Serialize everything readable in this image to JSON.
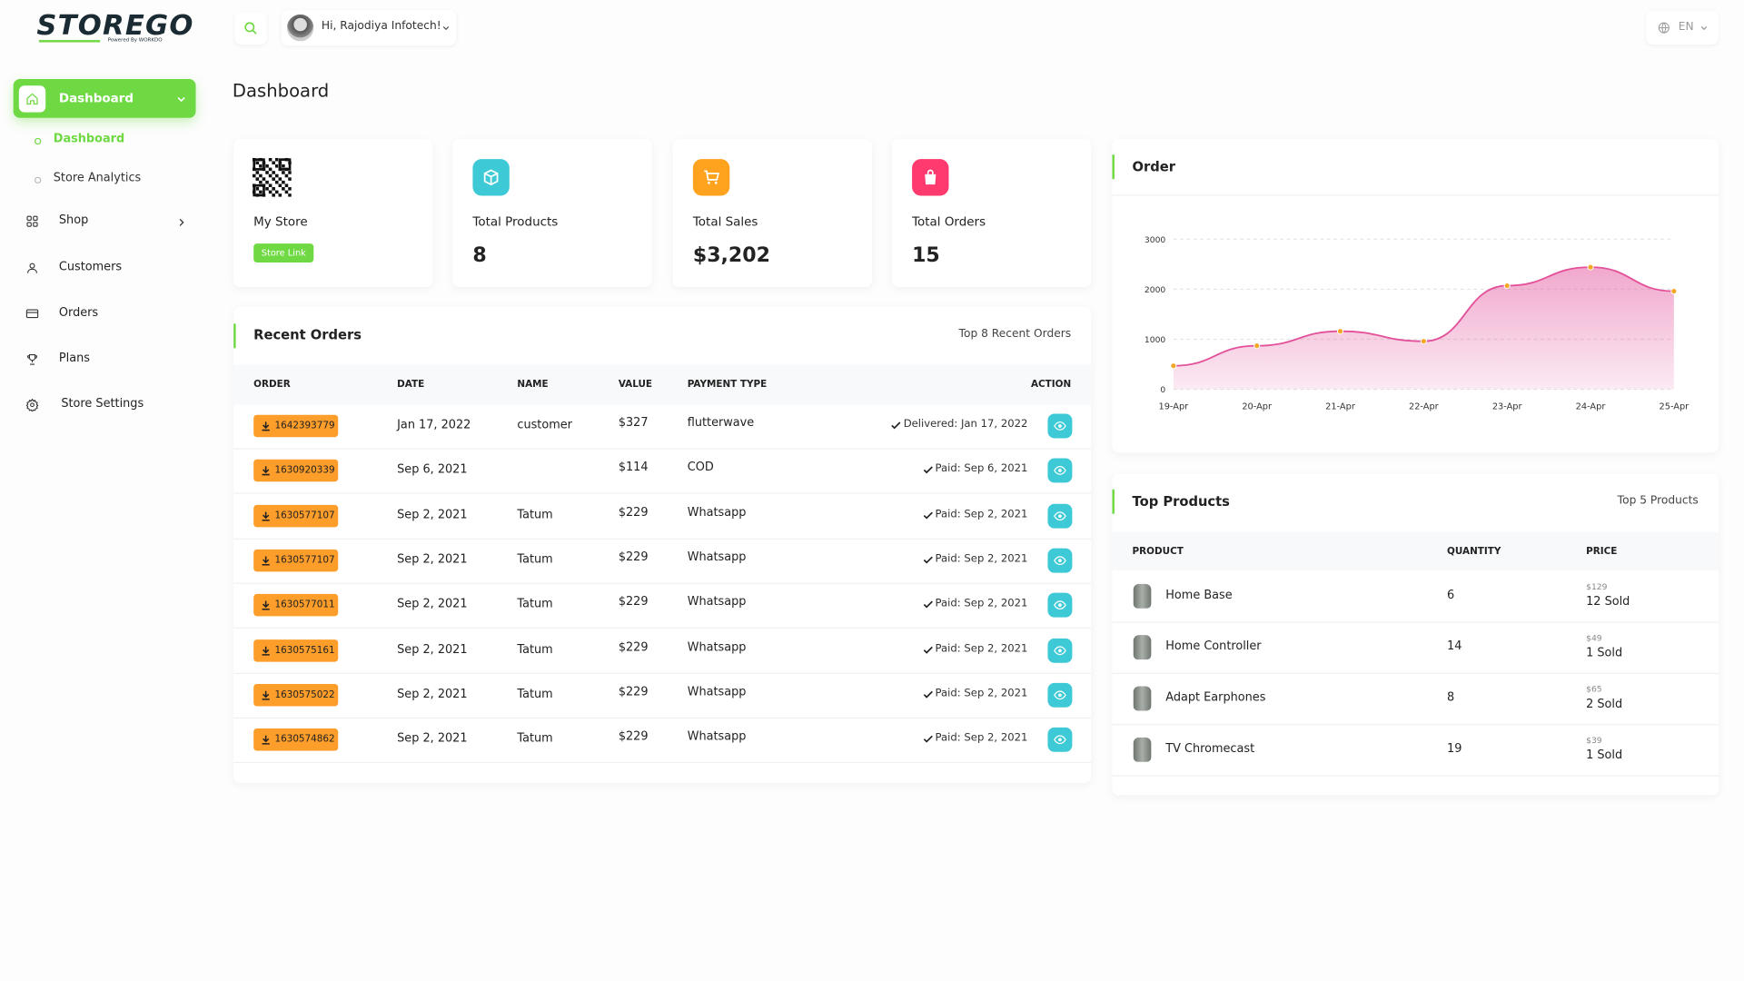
{
  "brand": {
    "logo": "STOREGO",
    "tagline": "Powered By WORKDO"
  },
  "header": {
    "greeting": "Hi, Rajodiya Infotech!",
    "language": "EN"
  },
  "sidebar": {
    "items": [
      {
        "label": "Dashboard",
        "children": [
          "Dashboard",
          "Store Analytics"
        ]
      },
      {
        "label": "Shop"
      },
      {
        "label": "Customers"
      },
      {
        "label": "Orders"
      },
      {
        "label": "Plans"
      },
      {
        "label": "Store Settings"
      }
    ]
  },
  "page_title": "Dashboard",
  "stats": [
    {
      "label": "My Store",
      "button": "Store Link"
    },
    {
      "label": "Total Products",
      "value": "8"
    },
    {
      "label": "Total Sales",
      "value": "$3,202"
    },
    {
      "label": "Total Orders",
      "value": "15"
    }
  ],
  "recent_orders": {
    "title": "Recent Orders",
    "subtitle": "Top 8 Recent Orders",
    "columns": [
      "ORDER",
      "DATE",
      "NAME",
      "VALUE",
      "PAYMENT TYPE",
      "ACTION"
    ],
    "rows": [
      {
        "order": "1642393779",
        "date": "Jan 17, 2022",
        "name": "customer",
        "value": "$327",
        "payment": "flutterwave",
        "status": "Delivered: Jan 17, 2022"
      },
      {
        "order": "1630920339",
        "date": "Sep 6, 2021",
        "name": null,
        "value": "$114",
        "payment": "COD",
        "status": "Paid: Sep 6, 2021"
      },
      {
        "order": "1630577107",
        "date": "Sep 2, 2021",
        "name": "Tatum",
        "value": "$229",
        "payment": "Whatsapp",
        "status": "Paid: Sep 2, 2021"
      },
      {
        "order": "1630577107",
        "date": "Sep 2, 2021",
        "name": "Tatum",
        "value": "$229",
        "payment": "Whatsapp",
        "status": "Paid: Sep 2, 2021"
      },
      {
        "order": "1630577011",
        "date": "Sep 2, 2021",
        "name": "Tatum",
        "value": "$229",
        "payment": "Whatsapp",
        "status": "Paid: Sep 2, 2021"
      },
      {
        "order": "1630575161",
        "date": "Sep 2, 2021",
        "name": "Tatum",
        "value": "$229",
        "payment": "Whatsapp",
        "status": "Paid: Sep 2, 2021"
      },
      {
        "order": "1630575022",
        "date": "Sep 2, 2021",
        "name": "Tatum",
        "value": "$229",
        "payment": "Whatsapp",
        "status": "Paid: Sep 2, 2021"
      },
      {
        "order": "1630574862",
        "date": "Sep 2, 2021",
        "name": "Tatum",
        "value": "$229",
        "payment": "Whatsapp",
        "status": "Paid: Sep 2, 2021"
      }
    ]
  },
  "order_chart": {
    "type": "area",
    "title": "Order",
    "categories": [
      "19-Apr",
      "20-Apr",
      "21-Apr",
      "22-Apr",
      "23-Apr",
      "24-Apr",
      "25-Apr"
    ],
    "values": [
      470,
      870,
      1160,
      960,
      2070,
      2440,
      1960
    ],
    "color": "#e2519a",
    "marker_color": "#f5a623",
    "ylim": [
      0,
      3000
    ],
    "yticks": [
      0,
      1000,
      2000,
      3000
    ],
    "grid": true
  },
  "top_products": {
    "title": "Top Products",
    "subtitle": "Top 5 Products",
    "columns": [
      "PRODUCT",
      "QUANTITY",
      "PRICE"
    ],
    "rows": [
      {
        "name": "Home Base",
        "quantity": "6",
        "price": "$129",
        "sold": "12 Sold"
      },
      {
        "name": "Home Controller",
        "quantity": "14",
        "price": "$49",
        "sold": "1 Sold"
      },
      {
        "name": "Adapt Earphones",
        "quantity": "8",
        "price": "$65",
        "sold": "2 Sold"
      },
      {
        "name": "TV Chromecast",
        "quantity": "19",
        "price": "$39",
        "sold": "1 Sold"
      }
    ]
  }
}
